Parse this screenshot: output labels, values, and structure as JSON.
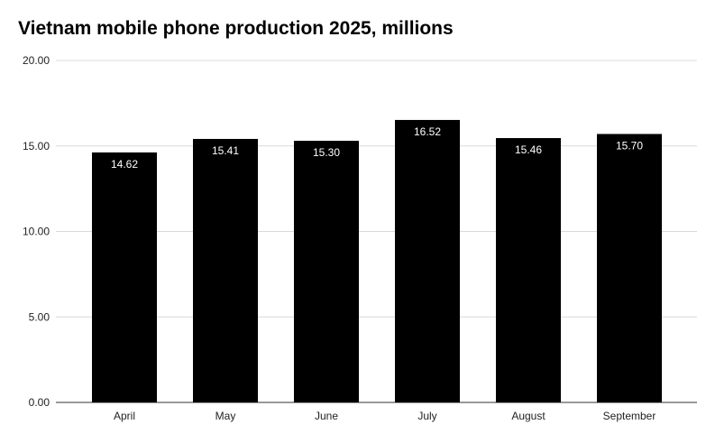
{
  "chart_data": {
    "type": "bar",
    "title": "Vietnam mobile phone production 2025, millions",
    "xlabel": "",
    "ylabel": "",
    "categories": [
      "April",
      "May",
      "June",
      "July",
      "August",
      "September"
    ],
    "values": [
      14.62,
      15.41,
      15.3,
      16.52,
      15.46,
      15.7
    ],
    "data_labels": [
      "14.62",
      "15.41",
      "15.30",
      "16.52",
      "15.46",
      "15.70"
    ],
    "ylim": [
      0,
      20
    ],
    "yticks": [
      "0.00",
      "5.00",
      "10.00",
      "15.00",
      "20.00"
    ],
    "grid": true,
    "legend": "none",
    "colors": {
      "bar": "#000000",
      "grid": "#d9d9d9",
      "axis": "#333333",
      "data_label": "#ffffff"
    }
  }
}
